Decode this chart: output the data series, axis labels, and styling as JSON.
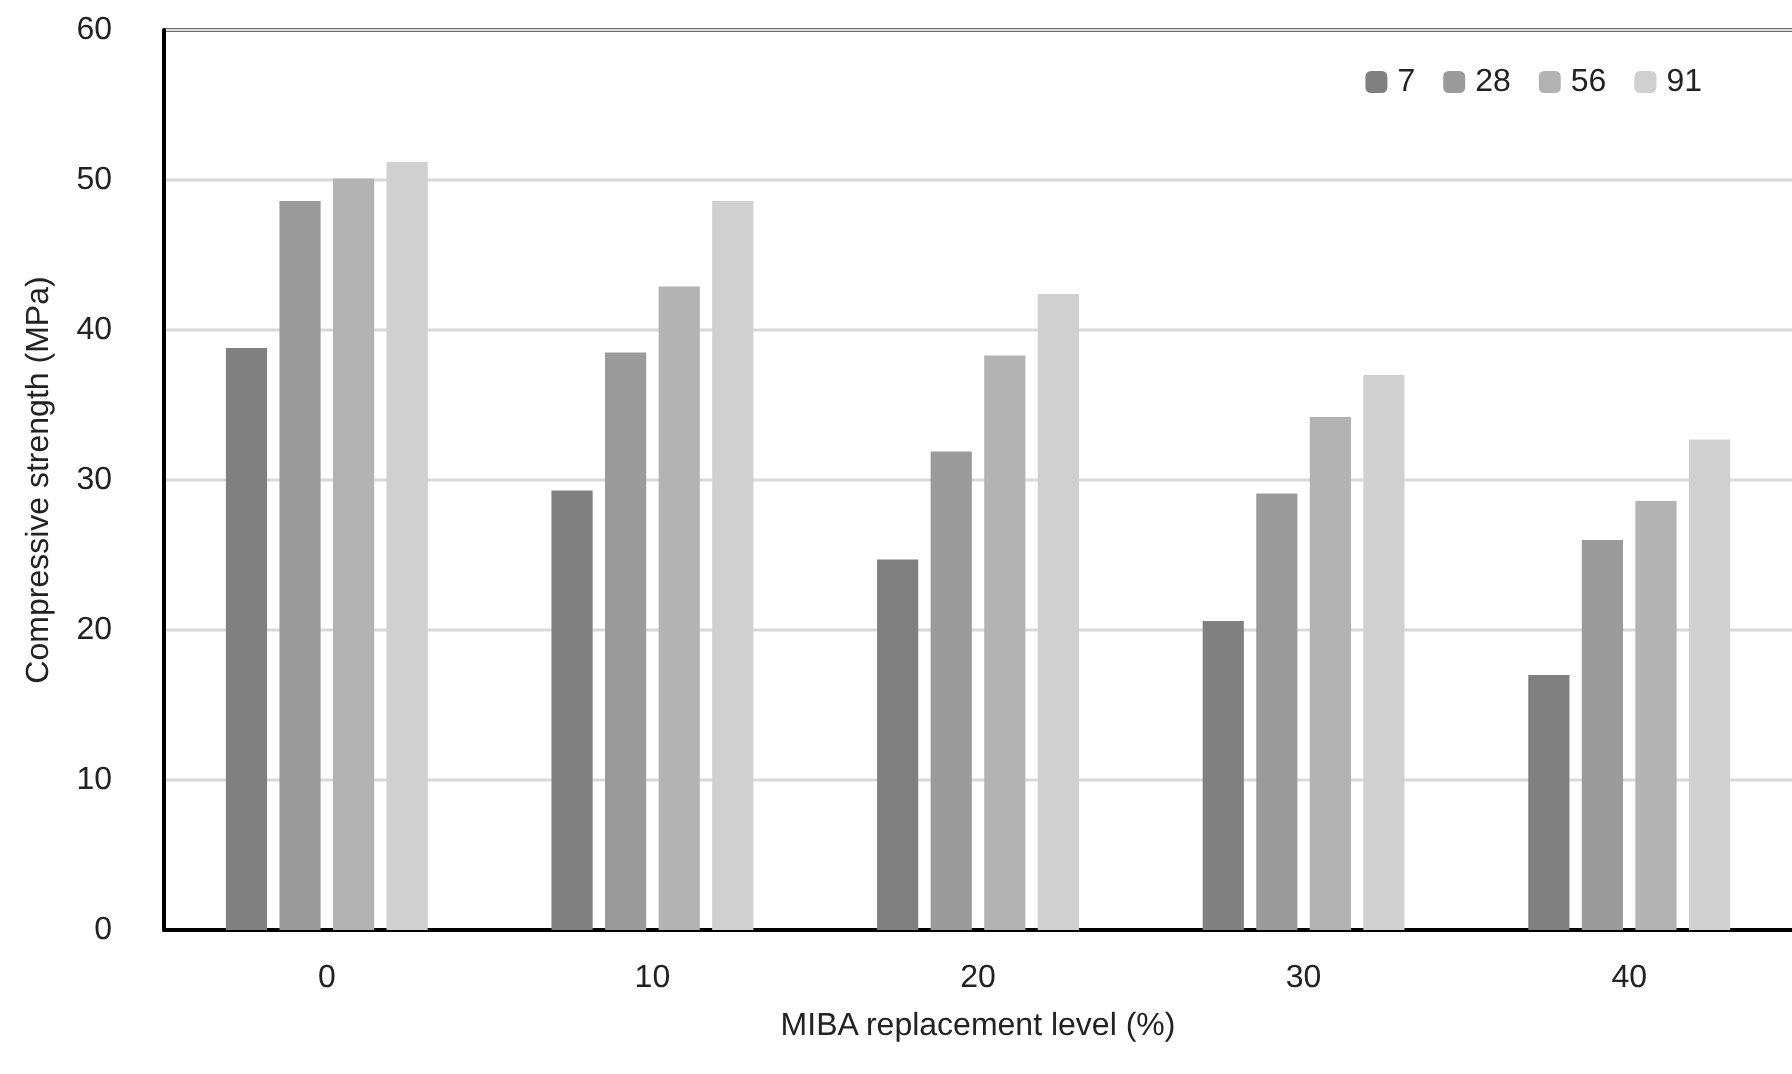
{
  "chart_data": {
    "type": "bar",
    "xlabel": "MIBA replacement level (%)",
    "ylabel": "Compressive strength (MPa)",
    "categories": [
      "0",
      "10",
      "20",
      "30",
      "40"
    ],
    "series": [
      {
        "name": "7",
        "color": "#808080",
        "values": [
          38.8,
          29.3,
          24.7,
          20.6,
          17.0
        ]
      },
      {
        "name": "28",
        "color": "#9b9b9b",
        "values": [
          48.6,
          38.5,
          31.9,
          29.1,
          26.0
        ]
      },
      {
        "name": "56",
        "color": "#b3b3b3",
        "values": [
          50.1,
          42.9,
          38.3,
          34.2,
          28.6
        ]
      },
      {
        "name": "91",
        "color": "#d0d0d0",
        "values": [
          51.2,
          48.6,
          42.4,
          37.0,
          32.7
        ]
      }
    ],
    "ylim": [
      0,
      60
    ],
    "yticks": [
      0,
      10,
      20,
      30,
      40,
      50,
      60
    ],
    "grid": "y",
    "legend": "top right"
  }
}
